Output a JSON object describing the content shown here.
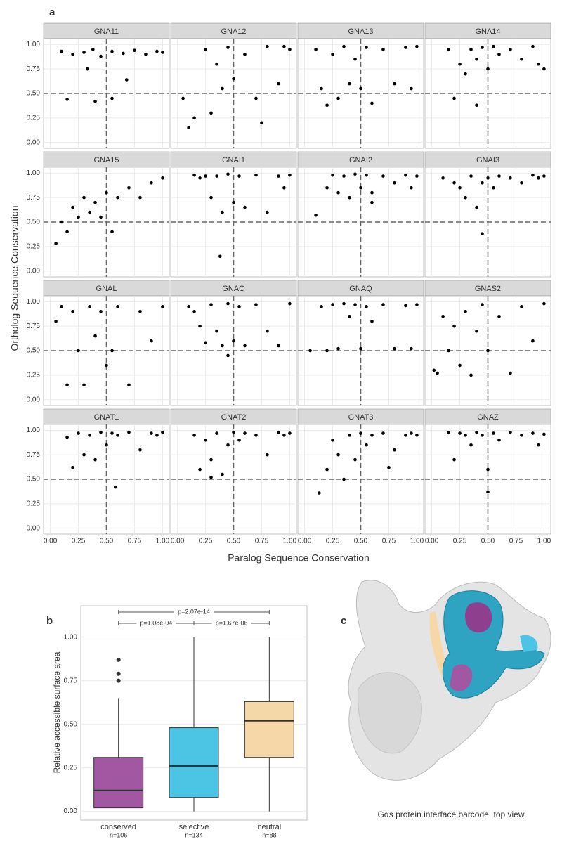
{
  "chart_data": [
    {
      "type": "scatter",
      "panel_label": "a",
      "x_label": "Paralog Sequence Conservation",
      "y_label": "Ortholog Sequence Conservation",
      "color": "#000000",
      "ref_color": "#666666",
      "hline": 0.5,
      "vline": 0.5,
      "grid": true,
      "xlim": [
        -0.06,
        1.06
      ],
      "ylim": [
        -0.06,
        1.06
      ],
      "xticks": [
        {
          "value": 0,
          "label": "0.00"
        },
        {
          "value": 0.25,
          "label": "0.25"
        },
        {
          "value": 0.5,
          "label": "0.50"
        },
        {
          "value": 0.75,
          "label": "0.75"
        },
        {
          "value": 1,
          "label": "1.00"
        }
      ],
      "yticks": [
        {
          "value": 0,
          "label": "0.00"
        },
        {
          "value": 0.25,
          "label": "0.25"
        },
        {
          "value": 0.5,
          "label": "0.50"
        },
        {
          "value": 0.75,
          "label": "0.75"
        },
        {
          "value": 1,
          "label": "1.00"
        }
      ],
      "panels": [
        {
          "name": "GNA11",
          "x": [
            0.1,
            0.2,
            0.3,
            0.38,
            0.45,
            0.55,
            0.65,
            0.75,
            0.85,
            0.95,
            1.0,
            0.15,
            0.4,
            0.55,
            0.68,
            0.33
          ],
          "y": [
            0.93,
            0.9,
            0.92,
            0.95,
            0.88,
            0.93,
            0.91,
            0.94,
            0.9,
            0.93,
            0.92,
            0.44,
            0.42,
            0.45,
            0.64,
            0.75
          ]
        },
        {
          "name": "GNA12",
          "x": [
            0.05,
            0.1,
            0.15,
            0.25,
            0.3,
            0.35,
            0.4,
            0.45,
            0.5,
            0.6,
            0.7,
            0.8,
            0.9,
            0.95,
            1.0,
            0.75
          ],
          "y": [
            0.45,
            0.15,
            0.25,
            0.95,
            0.3,
            0.8,
            0.55,
            0.97,
            0.65,
            0.9,
            0.45,
            0.98,
            0.6,
            0.98,
            0.95,
            0.2
          ]
        },
        {
          "name": "GNA13",
          "x": [
            0.1,
            0.15,
            0.25,
            0.3,
            0.35,
            0.4,
            0.45,
            0.5,
            0.55,
            0.6,
            0.7,
            0.8,
            0.9,
            0.95,
            1.0,
            0.2
          ],
          "y": [
            0.95,
            0.55,
            0.9,
            0.45,
            0.98,
            0.6,
            0.85,
            0.55,
            0.97,
            0.4,
            0.95,
            0.6,
            0.97,
            0.55,
            0.98,
            0.38
          ]
        },
        {
          "name": "GNA14",
          "x": [
            0.15,
            0.2,
            0.25,
            0.3,
            0.35,
            0.4,
            0.45,
            0.5,
            0.55,
            0.6,
            0.7,
            0.8,
            0.9,
            0.95,
            1.0,
            0.4
          ],
          "y": [
            0.95,
            0.45,
            0.8,
            0.7,
            0.95,
            0.85,
            0.97,
            0.75,
            0.98,
            0.9,
            0.95,
            0.85,
            0.98,
            0.8,
            0.75,
            0.38
          ]
        },
        {
          "name": "GNA15",
          "x": [
            0.05,
            0.1,
            0.15,
            0.2,
            0.25,
            0.3,
            0.35,
            0.4,
            0.45,
            0.5,
            0.55,
            0.6,
            0.7,
            0.8,
            0.9,
            1.0
          ],
          "y": [
            0.28,
            0.5,
            0.4,
            0.65,
            0.55,
            0.75,
            0.6,
            0.7,
            0.55,
            0.8,
            0.4,
            0.75,
            0.85,
            0.75,
            0.9,
            0.95
          ]
        },
        {
          "name": "GNAI1",
          "x": [
            0.15,
            0.2,
            0.25,
            0.3,
            0.35,
            0.4,
            0.45,
            0.5,
            0.55,
            0.6,
            0.7,
            0.8,
            0.9,
            0.95,
            1.0,
            0.38
          ],
          "y": [
            0.98,
            0.95,
            0.97,
            0.75,
            0.97,
            0.6,
            0.99,
            0.7,
            0.97,
            0.65,
            0.98,
            0.6,
            0.97,
            0.85,
            0.98,
            0.15
          ]
        },
        {
          "name": "GNAI2",
          "x": [
            0.1,
            0.2,
            0.25,
            0.3,
            0.35,
            0.4,
            0.45,
            0.5,
            0.55,
            0.6,
            0.7,
            0.8,
            0.9,
            0.95,
            1.0,
            0.6
          ],
          "y": [
            0.57,
            0.85,
            0.98,
            0.8,
            0.97,
            0.75,
            0.99,
            0.85,
            0.98,
            0.8,
            0.97,
            0.9,
            0.98,
            0.85,
            0.97,
            0.7
          ]
        },
        {
          "name": "GNAI3",
          "x": [
            0.1,
            0.2,
            0.25,
            0.3,
            0.35,
            0.4,
            0.45,
            0.5,
            0.55,
            0.6,
            0.7,
            0.8,
            0.9,
            0.95,
            1.0,
            0.45
          ],
          "y": [
            0.95,
            0.9,
            0.85,
            0.75,
            0.97,
            0.65,
            0.9,
            0.95,
            0.85,
            0.97,
            0.95,
            0.9,
            0.98,
            0.95,
            0.97,
            0.38
          ]
        },
        {
          "name": "GNAL",
          "x": [
            0.05,
            0.1,
            0.15,
            0.2,
            0.25,
            0.3,
            0.35,
            0.4,
            0.45,
            0.5,
            0.6,
            0.7,
            0.8,
            0.9,
            1.0,
            0.55
          ],
          "y": [
            0.8,
            0.95,
            0.15,
            0.9,
            0.5,
            0.15,
            0.95,
            0.65,
            0.9,
            0.35,
            0.95,
            0.15,
            0.9,
            0.6,
            0.95,
            0.5
          ]
        },
        {
          "name": "GNAO",
          "x": [
            0.1,
            0.15,
            0.2,
            0.25,
            0.3,
            0.35,
            0.4,
            0.45,
            0.5,
            0.55,
            0.6,
            0.7,
            0.8,
            0.9,
            1.0,
            0.45
          ],
          "y": [
            0.95,
            0.9,
            0.75,
            0.58,
            0.97,
            0.7,
            0.55,
            0.98,
            0.6,
            0.95,
            0.55,
            0.97,
            0.7,
            0.55,
            0.98,
            0.45
          ]
        },
        {
          "name": "GNAQ",
          "x": [
            0.05,
            0.15,
            0.2,
            0.25,
            0.3,
            0.35,
            0.4,
            0.45,
            0.5,
            0.55,
            0.6,
            0.7,
            0.8,
            0.9,
            1.0,
            0.95
          ],
          "y": [
            0.5,
            0.95,
            0.5,
            0.97,
            0.52,
            0.98,
            0.85,
            0.97,
            0.52,
            0.95,
            0.8,
            0.97,
            0.52,
            0.96,
            0.97,
            0.52
          ]
        },
        {
          "name": "GNAS2",
          "x": [
            0.02,
            0.05,
            0.1,
            0.15,
            0.2,
            0.25,
            0.3,
            0.35,
            0.4,
            0.45,
            0.5,
            0.6,
            0.7,
            0.8,
            0.9,
            1.0
          ],
          "y": [
            0.3,
            0.27,
            0.85,
            0.5,
            0.75,
            0.35,
            0.9,
            0.25,
            0.7,
            0.97,
            0.5,
            0.85,
            0.27,
            0.95,
            0.6,
            0.98
          ]
        },
        {
          "name": "GNAT1",
          "x": [
            0.15,
            0.2,
            0.25,
            0.3,
            0.35,
            0.4,
            0.45,
            0.5,
            0.55,
            0.6,
            0.7,
            0.8,
            0.9,
            0.95,
            1.0,
            0.58
          ],
          "y": [
            0.93,
            0.62,
            0.97,
            0.75,
            0.95,
            0.7,
            0.98,
            0.85,
            0.97,
            0.95,
            0.98,
            0.8,
            0.97,
            0.95,
            0.98,
            0.42
          ]
        },
        {
          "name": "GNAT2",
          "x": [
            0.15,
            0.2,
            0.25,
            0.3,
            0.35,
            0.4,
            0.45,
            0.5,
            0.55,
            0.6,
            0.7,
            0.8,
            0.9,
            0.95,
            1.0,
            0.3
          ],
          "y": [
            0.95,
            0.6,
            0.9,
            0.7,
            0.97,
            0.55,
            0.85,
            0.98,
            0.9,
            0.97,
            0.95,
            0.75,
            0.98,
            0.95,
            0.97,
            0.52
          ]
        },
        {
          "name": "GNAT3",
          "x": [
            0.13,
            0.2,
            0.25,
            0.3,
            0.35,
            0.4,
            0.45,
            0.5,
            0.55,
            0.6,
            0.7,
            0.8,
            0.9,
            0.95,
            1.0,
            0.75
          ],
          "y": [
            0.36,
            0.6,
            0.9,
            0.75,
            0.5,
            0.95,
            0.7,
            0.97,
            0.85,
            0.95,
            0.97,
            0.8,
            0.95,
            0.97,
            0.95,
            0.62
          ]
        },
        {
          "name": "GNAZ",
          "x": [
            0.15,
            0.2,
            0.25,
            0.3,
            0.35,
            0.4,
            0.45,
            0.5,
            0.55,
            0.6,
            0.7,
            0.8,
            0.9,
            0.95,
            1.0,
            0.5
          ],
          "y": [
            0.98,
            0.7,
            0.97,
            0.95,
            0.85,
            0.98,
            0.95,
            0.6,
            0.97,
            0.9,
            0.98,
            0.95,
            0.97,
            0.85,
            0.96,
            0.37
          ]
        }
      ]
    },
    {
      "type": "box",
      "panel_label": "b",
      "y_label": "Relative accessible surface area",
      "categories": [
        "conserved",
        "selective",
        "neutral"
      ],
      "counts": [
        "n=106",
        "n=134",
        "n=88"
      ],
      "colors": [
        "#a157a1",
        "#4cc4e4",
        "#f6d8a8"
      ],
      "grid": true,
      "ylim": [
        -0.05,
        1.18
      ],
      "yticks": [
        {
          "value": 0,
          "label": "0.00"
        },
        {
          "value": 0.25,
          "label": "0.25"
        },
        {
          "value": 0.5,
          "label": "0.50"
        },
        {
          "value": 0.75,
          "label": "0.75"
        },
        {
          "value": 1,
          "label": "1.00"
        }
      ],
      "boxes": [
        {
          "whisker_low": 0.02,
          "q1": 0.02,
          "median": 0.12,
          "q3": 0.31,
          "whisker_high": 0.65,
          "outliers": [
            0.75,
            0.79,
            0.87
          ]
        },
        {
          "whisker_low": 0.0,
          "q1": 0.08,
          "median": 0.26,
          "q3": 0.48,
          "whisker_high": 1.0,
          "outliers": []
        },
        {
          "whisker_low": 0.0,
          "q1": 0.31,
          "median": 0.52,
          "q3": 0.63,
          "whisker_high": 1.0,
          "outliers": []
        }
      ],
      "comparisons": [
        {
          "from": 0,
          "to": 2,
          "label": "p=2.07e-14"
        },
        {
          "from": 0,
          "to": 1,
          "label": "p=1.08e-04"
        },
        {
          "from": 1,
          "to": 2,
          "label": "p=1.67e-06"
        }
      ]
    },
    {
      "type": "image",
      "panel_label": "c",
      "caption": "Gαs protein interface barcode, top view"
    }
  ]
}
